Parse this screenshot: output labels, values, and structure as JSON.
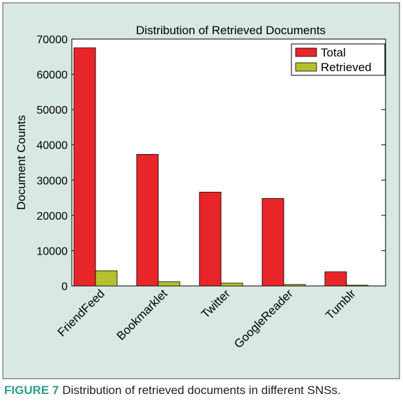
{
  "chart_data": {
    "type": "bar",
    "title": "Distribution of Retrieved Documents",
    "ylabel": "Document Counts",
    "categories": [
      "FriendFeed",
      "Bookmarklet",
      "Twitter",
      "GoogleReader",
      "Tumblr"
    ],
    "series": [
      {
        "name": "Total",
        "color": "#e8262a",
        "values": [
          67500,
          37300,
          26600,
          24800,
          4000
        ]
      },
      {
        "name": "Retrieved",
        "color": "#b5c12c",
        "values": [
          4300,
          1200,
          800,
          400,
          200
        ]
      }
    ],
    "ylim": [
      0,
      70000
    ],
    "yticks": [
      0,
      10000,
      20000,
      30000,
      40000,
      50000,
      60000,
      70000
    ],
    "legend": "upper-right"
  },
  "caption": {
    "label": "FIGURE 7",
    "text": "Distribution of retrieved documents in different SNSs."
  }
}
